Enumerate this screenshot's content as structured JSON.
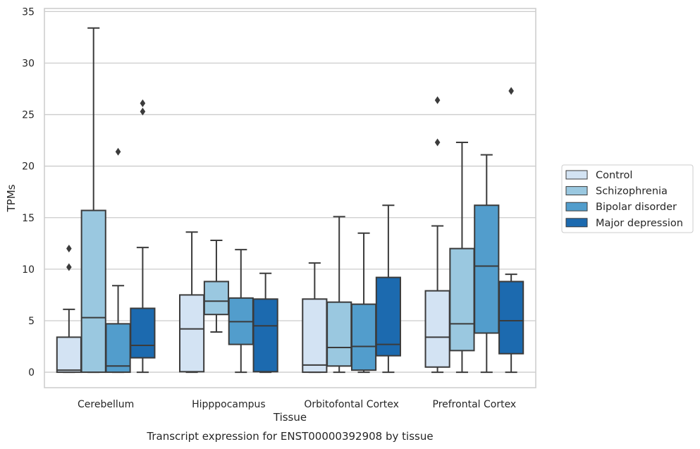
{
  "caption": "Transcript expression for ENST00000392908 by tissue",
  "chart_data": {
    "type": "box",
    "xlabel": "Tissue",
    "ylabel": "TPMs",
    "ylim": [
      -1.5,
      35.3
    ],
    "yticks": [
      0,
      5,
      10,
      15,
      20,
      25,
      30,
      35
    ],
    "grid": "horizontal",
    "legend_position": "right",
    "categories": [
      "Cerebellum",
      "Hipppocampus",
      "Orbitofontal Cortex",
      "Prefrontal Cortex"
    ],
    "series": [
      {
        "name": "Control",
        "color": "#d3e3f3",
        "boxes": [
          {
            "whislo": 0,
            "q1": 0,
            "med": 0.2,
            "q3": 3.4,
            "whishi": 6.1,
            "fliers": [
              10.2,
              12.0
            ]
          },
          {
            "whislo": 0,
            "q1": 0.05,
            "med": 4.2,
            "q3": 7.5,
            "whishi": 13.6,
            "fliers": []
          },
          {
            "whislo": 0,
            "q1": 0,
            "med": 0.7,
            "q3": 7.1,
            "whishi": 10.6,
            "fliers": []
          },
          {
            "whislo": 0,
            "q1": 0.5,
            "med": 3.4,
            "q3": 7.9,
            "whishi": 14.2,
            "fliers": [
              22.3,
              26.4
            ]
          }
        ]
      },
      {
        "name": "Schizophrenia",
        "color": "#9ac8e0",
        "boxes": [
          {
            "whislo": 0,
            "q1": 0,
            "med": 5.3,
            "q3": 15.7,
            "whishi": 33.4,
            "fliers": []
          },
          {
            "whislo": 3.9,
            "q1": 5.6,
            "med": 6.9,
            "q3": 8.8,
            "whishi": 12.8,
            "fliers": []
          },
          {
            "whislo": 0,
            "q1": 0.6,
            "med": 2.4,
            "q3": 6.8,
            "whishi": 15.1,
            "fliers": []
          },
          {
            "whislo": 0,
            "q1": 2.1,
            "med": 4.7,
            "q3": 12.0,
            "whishi": 22.3,
            "fliers": []
          }
        ]
      },
      {
        "name": "Bipolar disorder",
        "color": "#529dcc",
        "boxes": [
          {
            "whislo": 0,
            "q1": 0,
            "med": 0.6,
            "q3": 4.7,
            "whishi": 8.4,
            "fliers": [
              21.4
            ]
          },
          {
            "whislo": 0,
            "q1": 2.7,
            "med": 4.9,
            "q3": 7.2,
            "whishi": 11.9,
            "fliers": []
          },
          {
            "whislo": 0,
            "q1": 0.2,
            "med": 2.5,
            "q3": 6.6,
            "whishi": 13.5,
            "fliers": []
          },
          {
            "whislo": 0,
            "q1": 3.8,
            "med": 10.3,
            "q3": 16.2,
            "whishi": 21.1,
            "fliers": []
          }
        ]
      },
      {
        "name": "Major depression",
        "color": "#1c6aaf",
        "boxes": [
          {
            "whislo": 0,
            "q1": 1.4,
            "med": 2.6,
            "q3": 6.2,
            "whishi": 12.1,
            "fliers": [
              25.3,
              26.1
            ]
          },
          {
            "whislo": 0,
            "q1": 0.05,
            "med": 4.5,
            "q3": 7.1,
            "whishi": 9.6,
            "fliers": []
          },
          {
            "whislo": 0,
            "q1": 1.6,
            "med": 2.7,
            "q3": 9.2,
            "whishi": 16.2,
            "fliers": []
          },
          {
            "whislo": 0,
            "q1": 1.8,
            "med": 5.0,
            "q3": 8.8,
            "whishi": 9.5,
            "fliers": [
              27.3
            ]
          }
        ]
      }
    ]
  }
}
